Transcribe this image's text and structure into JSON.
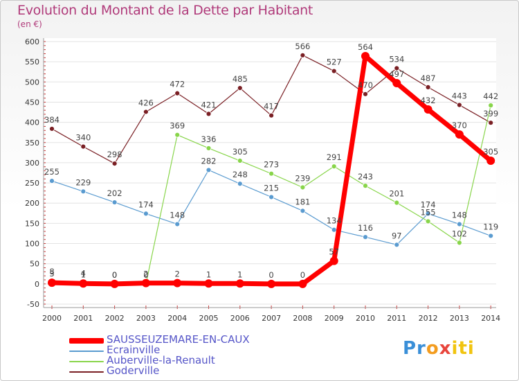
{
  "title": "Evolution du Montant de la Dette par Habitant",
  "subtitle": "(en €)",
  "logo": {
    "parts": [
      "Pr",
      "o",
      "x",
      "iti"
    ],
    "colors": [
      "#3a8fd8",
      "#f39c1f",
      "#e8453c",
      "#f1c40f"
    ]
  },
  "chart_data": {
    "type": "line",
    "title": "Evolution du Montant de la Dette par Habitant",
    "ylabel": "(en €)",
    "ylim": [
      -50,
      600
    ],
    "yticks": [
      -50,
      0,
      50,
      100,
      150,
      200,
      250,
      300,
      350,
      400,
      450,
      500,
      550,
      600
    ],
    "categories": [
      "2000",
      "2001",
      "2002",
      "2003",
      "2004",
      "2005",
      "2006",
      "2007",
      "2008",
      "2009",
      "2010",
      "2011",
      "2012",
      "2013",
      "2014"
    ],
    "series": [
      {
        "name": "Goderville",
        "color": "#7a1f24",
        "values": [
          384,
          340,
          298,
          426,
          472,
          421,
          485,
          417,
          566,
          527,
          470,
          534,
          487,
          443,
          399
        ]
      },
      {
        "name": "Ecrainville",
        "color": "#5a9bd0",
        "values": [
          255,
          229,
          202,
          174,
          148,
          282,
          248,
          215,
          181,
          134,
          116,
          97,
          174,
          148,
          119
        ]
      },
      {
        "name": "Auberville-la-Renault",
        "color": "#88d54a",
        "values": [
          8,
          4,
          0,
          0,
          369,
          336,
          305,
          273,
          239,
          291,
          243,
          201,
          155,
          102,
          442
        ]
      },
      {
        "name": "SAUSSEUZEMARE-EN-CAUX",
        "color": "#ff0000",
        "values": [
          3,
          1,
          0,
          2,
          2,
          1,
          1,
          0,
          0,
          57,
          564,
          497,
          432,
          370,
          305
        ]
      }
    ],
    "labels": {
      "Goderville": [
        "384",
        "340",
        "298",
        "426",
        "472",
        "421",
        "485",
        "417",
        "566",
        "527",
        "470",
        "534",
        "487",
        "443",
        "399"
      ],
      "Ecrainville": [
        "255",
        "229",
        "202",
        "174",
        "148",
        "282",
        "248",
        "215",
        "181",
        "134",
        "116",
        "97",
        "174",
        "148",
        "119"
      ],
      "Auberville-la-Renault": [
        "8",
        "4",
        "0",
        "0",
        "369",
        "336",
        "305",
        "273",
        "239",
        "291",
        "243",
        "201",
        "155",
        "102",
        "442"
      ],
      "SAUSSEUZEMARE-EN-CAUX": [
        "3",
        "1",
        "0",
        "2",
        "2",
        "1",
        "1",
        "0",
        "0",
        "57",
        "564",
        "497",
        "432",
        "370",
        "305"
      ]
    },
    "legend_order": [
      "SAUSSEUZEMARE-EN-CAUX",
      "Ecrainville",
      "Auberville-la-Renault",
      "Goderville"
    ]
  }
}
